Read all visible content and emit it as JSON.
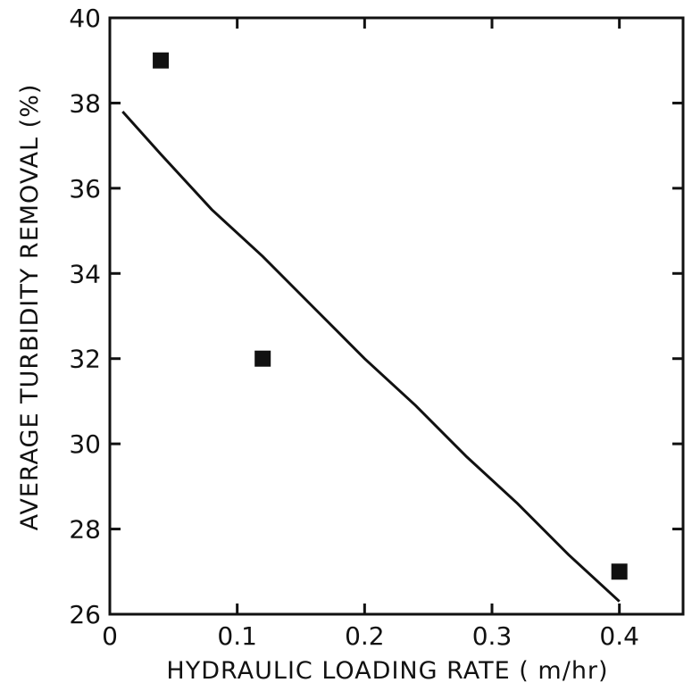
{
  "chart_data": {
    "type": "scatter",
    "title": "",
    "xlabel": "HYDRAULIC LOADING RATE ( m/hr)",
    "ylabel": "AVERAGE TURBIDITY REMOVAL (%)",
    "xlim": [
      0,
      0.45
    ],
    "ylim": [
      26,
      40
    ],
    "x_ticks": [
      0,
      0.1,
      0.2,
      0.3,
      0.4
    ],
    "x_tick_labels": [
      "0",
      "0.1",
      "0.2",
      "0.3",
      "0.4"
    ],
    "y_ticks": [
      26,
      28,
      30,
      32,
      34,
      36,
      38,
      40
    ],
    "y_tick_labels": [
      "26",
      "28",
      "30",
      "32",
      "34",
      "36",
      "38",
      "40"
    ],
    "grid": false,
    "points": [
      {
        "x": 0.04,
        "y": 39.0
      },
      {
        "x": 0.12,
        "y": 32.0
      },
      {
        "x": 0.4,
        "y": 27.0
      }
    ],
    "trend_line": {
      "x": [
        0.01,
        0.04,
        0.08,
        0.12,
        0.16,
        0.2,
        0.24,
        0.28,
        0.32,
        0.36,
        0.4
      ],
      "y": [
        37.8,
        36.8,
        35.5,
        34.4,
        33.2,
        32.0,
        30.9,
        29.7,
        28.6,
        27.4,
        26.3
      ]
    },
    "colors": {
      "marks": "#111111",
      "background": "#ffffff"
    }
  }
}
